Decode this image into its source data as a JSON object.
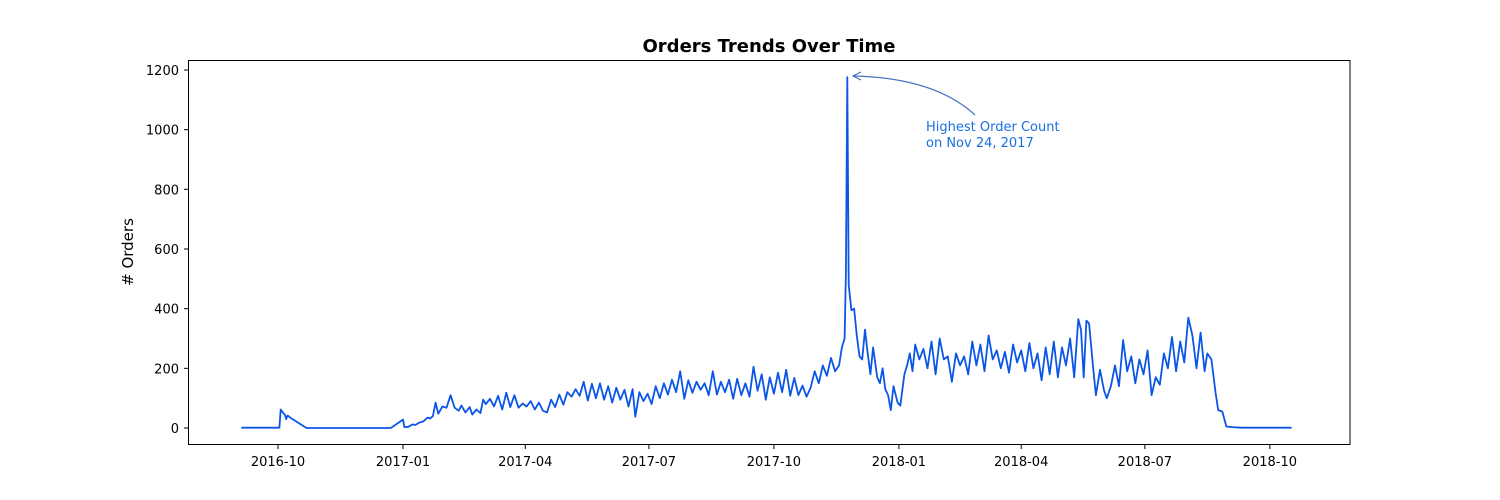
{
  "chart_data": {
    "type": "line",
    "title": "Orders Trends Over Time",
    "xlabel": "",
    "ylabel": "# Orders",
    "ylim": [
      -58,
      1235
    ],
    "xlim": [
      "2016-08-10",
      "2018-11-10"
    ],
    "grid": false,
    "legend": null,
    "line_color": "#0b56e6",
    "yticks": [
      0,
      200,
      400,
      600,
      800,
      1000,
      1200
    ],
    "xticks": [
      "2016-10",
      "2017-01",
      "2017-04",
      "2017-07",
      "2017-10",
      "2018-01",
      "2018-04",
      "2018-07",
      "2018-10"
    ],
    "annotation": {
      "text_line1": "Highest Order Count",
      "text_line2": "on Nov 24, 2017",
      "point": [
        "2017-11-24",
        1176
      ],
      "text_color": "#1a6fe0",
      "arrow_color": "#4a6fc4"
    },
    "series": [
      {
        "name": "# Orders",
        "points": [
          [
            "2016-09-04",
            1
          ],
          [
            "2016-10-02",
            1
          ],
          [
            "2016-10-03",
            62
          ],
          [
            "2016-10-04",
            55
          ],
          [
            "2016-10-06",
            45
          ],
          [
            "2016-10-07",
            30
          ],
          [
            "2016-10-08",
            42
          ],
          [
            "2016-10-10",
            35
          ],
          [
            "2016-10-22",
            0
          ],
          [
            "2016-12-23",
            0
          ],
          [
            "2017-01-01",
            28
          ],
          [
            "2017-01-02",
            3
          ],
          [
            "2017-01-05",
            4
          ],
          [
            "2017-01-08",
            12
          ],
          [
            "2017-01-10",
            10
          ],
          [
            "2017-01-13",
            18
          ],
          [
            "2017-01-16",
            22
          ],
          [
            "2017-01-19",
            35
          ],
          [
            "2017-01-21",
            32
          ],
          [
            "2017-01-23",
            40
          ],
          [
            "2017-01-25",
            85
          ],
          [
            "2017-01-27",
            48
          ],
          [
            "2017-01-30",
            72
          ],
          [
            "2017-02-02",
            68
          ],
          [
            "2017-02-05",
            110
          ],
          [
            "2017-02-08",
            68
          ],
          [
            "2017-02-11",
            58
          ],
          [
            "2017-02-13",
            75
          ],
          [
            "2017-02-16",
            52
          ],
          [
            "2017-02-19",
            70
          ],
          [
            "2017-02-21",
            45
          ],
          [
            "2017-02-24",
            62
          ],
          [
            "2017-02-27",
            50
          ],
          [
            "2017-03-01",
            95
          ],
          [
            "2017-03-03",
            80
          ],
          [
            "2017-03-06",
            98
          ],
          [
            "2017-03-09",
            72
          ],
          [
            "2017-03-12",
            108
          ],
          [
            "2017-03-15",
            62
          ],
          [
            "2017-03-18",
            118
          ],
          [
            "2017-03-21",
            70
          ],
          [
            "2017-03-24",
            110
          ],
          [
            "2017-03-27",
            68
          ],
          [
            "2017-03-30",
            82
          ],
          [
            "2017-04-02",
            72
          ],
          [
            "2017-04-05",
            90
          ],
          [
            "2017-04-08",
            62
          ],
          [
            "2017-04-11",
            85
          ],
          [
            "2017-04-14",
            58
          ],
          [
            "2017-04-17",
            52
          ],
          [
            "2017-04-20",
            95
          ],
          [
            "2017-04-23",
            70
          ],
          [
            "2017-04-26",
            112
          ],
          [
            "2017-04-29",
            78
          ],
          [
            "2017-05-02",
            120
          ],
          [
            "2017-05-05",
            105
          ],
          [
            "2017-05-08",
            130
          ],
          [
            "2017-05-11",
            108
          ],
          [
            "2017-05-14",
            155
          ],
          [
            "2017-05-17",
            92
          ],
          [
            "2017-05-20",
            148
          ],
          [
            "2017-05-23",
            100
          ],
          [
            "2017-05-26",
            150
          ],
          [
            "2017-05-29",
            95
          ],
          [
            "2017-06-01",
            140
          ],
          [
            "2017-06-04",
            85
          ],
          [
            "2017-06-07",
            135
          ],
          [
            "2017-06-10",
            95
          ],
          [
            "2017-06-13",
            128
          ],
          [
            "2017-06-16",
            72
          ],
          [
            "2017-06-19",
            130
          ],
          [
            "2017-06-21",
            38
          ],
          [
            "2017-06-24",
            120
          ],
          [
            "2017-06-27",
            90
          ],
          [
            "2017-06-30",
            115
          ],
          [
            "2017-07-03",
            80
          ],
          [
            "2017-07-06",
            140
          ],
          [
            "2017-07-09",
            100
          ],
          [
            "2017-07-12",
            150
          ],
          [
            "2017-07-15",
            112
          ],
          [
            "2017-07-18",
            162
          ],
          [
            "2017-07-21",
            120
          ],
          [
            "2017-07-24",
            190
          ],
          [
            "2017-07-27",
            98
          ],
          [
            "2017-07-30",
            160
          ],
          [
            "2017-08-02",
            118
          ],
          [
            "2017-08-05",
            155
          ],
          [
            "2017-08-08",
            128
          ],
          [
            "2017-08-11",
            150
          ],
          [
            "2017-08-14",
            110
          ],
          [
            "2017-08-17",
            190
          ],
          [
            "2017-08-20",
            112
          ],
          [
            "2017-08-23",
            155
          ],
          [
            "2017-08-26",
            120
          ],
          [
            "2017-08-29",
            162
          ],
          [
            "2017-09-01",
            98
          ],
          [
            "2017-09-04",
            165
          ],
          [
            "2017-09-07",
            110
          ],
          [
            "2017-09-10",
            150
          ],
          [
            "2017-09-13",
            105
          ],
          [
            "2017-09-16",
            205
          ],
          [
            "2017-09-19",
            125
          ],
          [
            "2017-09-22",
            180
          ],
          [
            "2017-09-25",
            95
          ],
          [
            "2017-09-28",
            170
          ],
          [
            "2017-10-01",
            115
          ],
          [
            "2017-10-04",
            185
          ],
          [
            "2017-10-07",
            120
          ],
          [
            "2017-10-10",
            195
          ],
          [
            "2017-10-13",
            108
          ],
          [
            "2017-10-16",
            168
          ],
          [
            "2017-10-19",
            110
          ],
          [
            "2017-10-22",
            142
          ],
          [
            "2017-10-25",
            105
          ],
          [
            "2017-10-28",
            135
          ],
          [
            "2017-10-31",
            190
          ],
          [
            "2017-11-03",
            150
          ],
          [
            "2017-11-06",
            210
          ],
          [
            "2017-11-09",
            175
          ],
          [
            "2017-11-12",
            235
          ],
          [
            "2017-11-15",
            190
          ],
          [
            "2017-11-18",
            210
          ],
          [
            "2017-11-20",
            270
          ],
          [
            "2017-11-22",
            300
          ],
          [
            "2017-11-23",
            520
          ],
          [
            "2017-11-24",
            1176
          ],
          [
            "2017-11-25",
            480
          ],
          [
            "2017-11-27",
            395
          ],
          [
            "2017-11-29",
            400
          ],
          [
            "2017-12-01",
            310
          ],
          [
            "2017-12-03",
            240
          ],
          [
            "2017-12-05",
            230
          ],
          [
            "2017-12-07",
            330
          ],
          [
            "2017-12-09",
            250
          ],
          [
            "2017-12-11",
            180
          ],
          [
            "2017-12-13",
            270
          ],
          [
            "2017-12-16",
            170
          ],
          [
            "2017-12-18",
            150
          ],
          [
            "2017-12-20",
            200
          ],
          [
            "2017-12-22",
            130
          ],
          [
            "2017-12-24",
            110
          ],
          [
            "2017-12-26",
            60
          ],
          [
            "2017-12-28",
            140
          ],
          [
            "2017-12-31",
            85
          ],
          [
            "2018-01-02",
            75
          ],
          [
            "2018-01-05",
            180
          ],
          [
            "2018-01-07",
            210
          ],
          [
            "2018-01-09",
            250
          ],
          [
            "2018-01-11",
            190
          ],
          [
            "2018-01-13",
            280
          ],
          [
            "2018-01-16",
            230
          ],
          [
            "2018-01-19",
            265
          ],
          [
            "2018-01-22",
            200
          ],
          [
            "2018-01-25",
            290
          ],
          [
            "2018-01-28",
            180
          ],
          [
            "2018-01-31",
            300
          ],
          [
            "2018-02-03",
            230
          ],
          [
            "2018-02-06",
            240
          ],
          [
            "2018-02-09",
            155
          ],
          [
            "2018-02-12",
            250
          ],
          [
            "2018-02-15",
            210
          ],
          [
            "2018-02-18",
            240
          ],
          [
            "2018-02-21",
            180
          ],
          [
            "2018-02-24",
            290
          ],
          [
            "2018-02-27",
            210
          ],
          [
            "2018-03-02",
            280
          ],
          [
            "2018-03-05",
            190
          ],
          [
            "2018-03-08",
            310
          ],
          [
            "2018-03-11",
            230
          ],
          [
            "2018-03-14",
            260
          ],
          [
            "2018-03-17",
            200
          ],
          [
            "2018-03-20",
            255
          ],
          [
            "2018-03-23",
            185
          ],
          [
            "2018-03-26",
            280
          ],
          [
            "2018-03-29",
            220
          ],
          [
            "2018-04-01",
            260
          ],
          [
            "2018-04-04",
            190
          ],
          [
            "2018-04-07",
            285
          ],
          [
            "2018-04-10",
            200
          ],
          [
            "2018-04-13",
            250
          ],
          [
            "2018-04-16",
            160
          ],
          [
            "2018-04-19",
            270
          ],
          [
            "2018-04-22",
            180
          ],
          [
            "2018-04-25",
            290
          ],
          [
            "2018-04-28",
            170
          ],
          [
            "2018-05-01",
            270
          ],
          [
            "2018-05-04",
            210
          ],
          [
            "2018-05-07",
            300
          ],
          [
            "2018-05-10",
            170
          ],
          [
            "2018-05-13",
            365
          ],
          [
            "2018-05-15",
            330
          ],
          [
            "2018-05-17",
            170
          ],
          [
            "2018-05-19",
            360
          ],
          [
            "2018-05-21",
            350
          ],
          [
            "2018-05-24",
            200
          ],
          [
            "2018-05-26",
            110
          ],
          [
            "2018-05-29",
            195
          ],
          [
            "2018-06-01",
            125
          ],
          [
            "2018-06-03",
            100
          ],
          [
            "2018-06-06",
            140
          ],
          [
            "2018-06-09",
            210
          ],
          [
            "2018-06-12",
            140
          ],
          [
            "2018-06-15",
            295
          ],
          [
            "2018-06-18",
            190
          ],
          [
            "2018-06-21",
            240
          ],
          [
            "2018-06-24",
            150
          ],
          [
            "2018-06-27",
            230
          ],
          [
            "2018-06-30",
            180
          ],
          [
            "2018-07-03",
            260
          ],
          [
            "2018-07-06",
            110
          ],
          [
            "2018-07-09",
            170
          ],
          [
            "2018-07-12",
            145
          ],
          [
            "2018-07-15",
            250
          ],
          [
            "2018-07-18",
            200
          ],
          [
            "2018-07-21",
            305
          ],
          [
            "2018-07-24",
            190
          ],
          [
            "2018-07-27",
            290
          ],
          [
            "2018-07-30",
            220
          ],
          [
            "2018-08-02",
            370
          ],
          [
            "2018-08-05",
            310
          ],
          [
            "2018-08-08",
            200
          ],
          [
            "2018-08-11",
            320
          ],
          [
            "2018-08-14",
            190
          ],
          [
            "2018-08-16",
            250
          ],
          [
            "2018-08-19",
            230
          ],
          [
            "2018-08-22",
            120
          ],
          [
            "2018-08-24",
            60
          ],
          [
            "2018-08-27",
            55
          ],
          [
            "2018-08-30",
            5
          ],
          [
            "2018-09-03",
            3
          ],
          [
            "2018-09-10",
            1
          ],
          [
            "2018-10-17",
            1
          ]
        ]
      }
    ]
  }
}
